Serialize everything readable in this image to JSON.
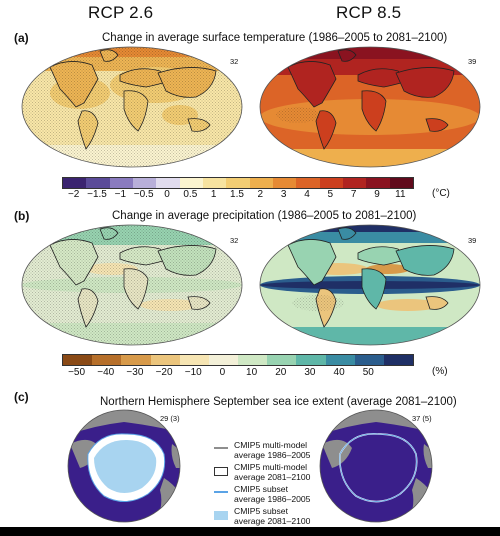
{
  "scenarios": {
    "left": "RCP 2.6",
    "right": "RCP 8.5"
  },
  "panel_a": {
    "label": "(a)",
    "title": "Change in average surface temperature (1986–2005 to 2081–2100)",
    "left_model_count": "32",
    "right_model_count": "39",
    "colorbar": {
      "ticks": [
        "−2",
        "−1.5",
        "−1",
        "−0.5",
        "0",
        "0.5",
        "1",
        "1.5",
        "2",
        "3",
        "4",
        "5",
        "7",
        "9",
        "11"
      ],
      "unit": "(°C)",
      "colors": [
        "#3b2470",
        "#5b4b99",
        "#8a7bbf",
        "#b8afd9",
        "#e1dcee",
        "#fbf4d0",
        "#f7e3a0",
        "#f3cd73",
        "#eeaf4d",
        "#e68a34",
        "#dc6427",
        "#cc3f1e",
        "#b02420",
        "#8a1320",
        "#600a1c"
      ]
    }
  },
  "panel_b": {
    "label": "(b)",
    "title": "Change in average precipitation (1986–2005 to 2081–2100)",
    "left_model_count": "32",
    "right_model_count": "39",
    "colorbar": {
      "ticks": [
        "−50",
        "−40",
        "−30",
        "−20",
        "−10",
        "0",
        "10",
        "20",
        "30",
        "40",
        "50"
      ],
      "unit": "(%)",
      "colors": [
        "#8a4a16",
        "#b66f2a",
        "#d79a4a",
        "#ebc57d",
        "#f6e5b3",
        "#f3f0d8",
        "#cfe8c4",
        "#98d3b1",
        "#5fb7a8",
        "#3a8ca3",
        "#2b5d8d",
        "#1f2f66"
      ]
    }
  },
  "panel_c": {
    "label": "(c)",
    "title": "Northern Hemisphere September sea ice extent (average 2081–2100)",
    "left_model_count": "29 (3)",
    "right_model_count": "37 (5)",
    "legend": [
      {
        "symbol": "gray-line",
        "text": "CMIP5 multi-model average 1986–2005"
      },
      {
        "symbol": "white-box",
        "text": "CMIP5 multi-model average 2081–2100"
      },
      {
        "symbol": "blue-line",
        "text": "CMIP5 subset average 1986–2005"
      },
      {
        "symbol": "blue-box",
        "text": "CMIP5 subset average 2081–2100"
      }
    ]
  }
}
